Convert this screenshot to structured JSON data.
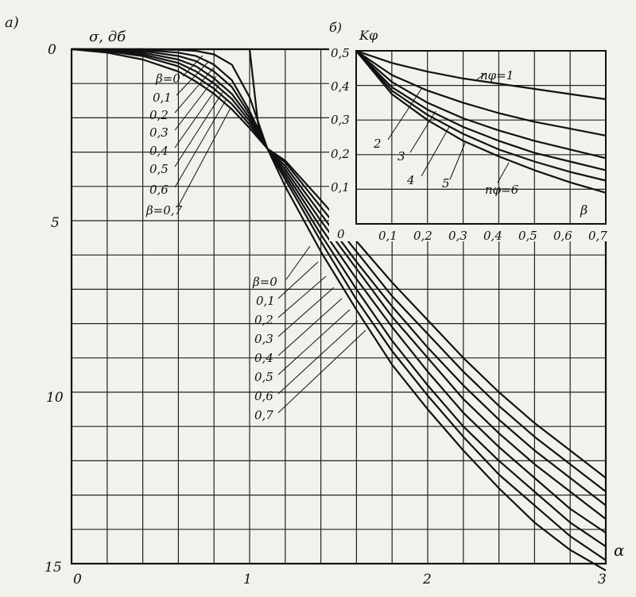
{
  "chart_data": [
    {
      "panel_label": "а)",
      "type": "line",
      "ylabel": "σ, дб",
      "xlabel": "α",
      "x_ticks": [
        "0",
        "1",
        "2",
        "3"
      ],
      "y_ticks": [
        "0",
        "5",
        "10",
        "15"
      ],
      "xlim": [
        0,
        3
      ],
      "ylim": [
        0,
        15
      ],
      "y_inverted": true,
      "grid": true,
      "series_labels_left": [
        "β=0",
        "0,1",
        "0,2",
        "0,3",
        "0,4",
        "0,5",
        "0,6",
        "β=0,7"
      ],
      "series_labels_right": [
        "β=0",
        "0,1",
        "0,2",
        "0,3",
        "0,4",
        "0,5",
        "0,6",
        "0,7"
      ],
      "series": [
        {
          "beta": 0.0,
          "x": [
            0,
            0.2,
            0.4,
            0.6,
            0.8,
            0.9,
            0.95,
            1.0,
            1.05,
            1.1,
            1.2,
            1.4,
            1.6,
            1.8,
            2.0,
            2.2,
            2.4,
            2.6,
            2.8,
            3.0
          ],
          "y": [
            0,
            0,
            0,
            0,
            0,
            0,
            0,
            0,
            2.3,
            2.9,
            4.0,
            5.9,
            7.6,
            9.2,
            10.5,
            11.7,
            12.8,
            13.8,
            14.6,
            15.2
          ]
        },
        {
          "beta": 0.1,
          "x": [
            0,
            0.2,
            0.4,
            0.6,
            0.7,
            0.8,
            0.9,
            1.0,
            1.1,
            1.2,
            1.4,
            1.6,
            1.8,
            2.0,
            2.2,
            2.4,
            2.6,
            2.8,
            3.0
          ],
          "y": [
            0,
            0,
            0,
            0.02,
            0.05,
            0.15,
            0.45,
            1.4,
            2.9,
            3.8,
            5.6,
            7.3,
            8.8,
            10.1,
            11.3,
            12.4,
            13.3,
            14.2,
            14.9
          ]
        },
        {
          "beta": 0.2,
          "x": [
            0,
            0.2,
            0.4,
            0.6,
            0.7,
            0.8,
            0.9,
            1.0,
            1.1,
            1.2,
            1.4,
            1.6,
            1.8,
            2.0,
            2.2,
            2.4,
            2.6,
            2.8,
            3.0
          ],
          "y": [
            0,
            0,
            0.02,
            0.1,
            0.2,
            0.45,
            0.9,
            1.8,
            2.9,
            3.7,
            5.4,
            7.0,
            8.5,
            9.8,
            11.0,
            12.0,
            12.9,
            13.8,
            14.5
          ]
        },
        {
          "beta": 0.3,
          "x": [
            0,
            0.2,
            0.4,
            0.6,
            0.7,
            0.8,
            0.9,
            1.0,
            1.1,
            1.2,
            1.4,
            1.6,
            1.8,
            2.0,
            2.2,
            2.4,
            2.6,
            2.8,
            3.0
          ],
          "y": [
            0,
            0.01,
            0.05,
            0.2,
            0.35,
            0.65,
            1.1,
            1.9,
            2.9,
            3.6,
            5.2,
            6.7,
            8.1,
            9.4,
            10.6,
            11.6,
            12.5,
            13.4,
            14.1
          ]
        },
        {
          "beta": 0.4,
          "x": [
            0,
            0.2,
            0.4,
            0.6,
            0.7,
            0.8,
            0.9,
            1.0,
            1.1,
            1.2,
            1.4,
            1.6,
            1.8,
            2.0,
            2.2,
            2.4,
            2.6,
            2.8,
            3.0
          ],
          "y": [
            0,
            0.02,
            0.1,
            0.3,
            0.5,
            0.85,
            1.3,
            2.0,
            2.9,
            3.5,
            5.0,
            6.4,
            7.8,
            9.0,
            10.2,
            11.2,
            12.1,
            12.9,
            13.7
          ]
        },
        {
          "beta": 0.5,
          "x": [
            0,
            0.2,
            0.4,
            0.6,
            0.7,
            0.8,
            0.9,
            1.0,
            1.1,
            1.2,
            1.4,
            1.6,
            1.8,
            2.0,
            2.2,
            2.4,
            2.6,
            2.8,
            3.0
          ],
          "y": [
            0,
            0.04,
            0.15,
            0.4,
            0.65,
            1.0,
            1.45,
            2.1,
            2.9,
            3.4,
            4.8,
            6.2,
            7.5,
            8.7,
            9.8,
            10.8,
            11.7,
            12.5,
            13.3
          ]
        },
        {
          "beta": 0.6,
          "x": [
            0,
            0.2,
            0.4,
            0.6,
            0.7,
            0.8,
            0.9,
            1.0,
            1.1,
            1.2,
            1.4,
            1.6,
            1.8,
            2.0,
            2.2,
            2.4,
            2.6,
            2.8,
            3.0
          ],
          "y": [
            0,
            0.06,
            0.2,
            0.5,
            0.8,
            1.15,
            1.6,
            2.2,
            2.9,
            3.3,
            4.6,
            5.9,
            7.2,
            8.3,
            9.4,
            10.4,
            11.3,
            12.1,
            12.9
          ]
        },
        {
          "beta": 0.7,
          "x": [
            0,
            0.2,
            0.4,
            0.6,
            0.7,
            0.8,
            0.9,
            1.0,
            1.1,
            1.2,
            1.4,
            1.6,
            1.8,
            2.0,
            2.2,
            2.4,
            2.6,
            2.8,
            3.0
          ],
          "y": [
            0,
            0.1,
            0.3,
            0.65,
            0.95,
            1.3,
            1.75,
            2.3,
            2.9,
            3.25,
            4.4,
            5.6,
            6.8,
            7.9,
            9.0,
            10.0,
            10.9,
            11.7,
            12.5
          ]
        }
      ]
    },
    {
      "panel_label": "б)",
      "type": "line",
      "ylabel": "Kφ",
      "xlabel": "β",
      "x_ticks": [
        "0",
        "0,1",
        "0,2",
        "0,3",
        "0,4",
        "0,5",
        "0,6",
        "0,7"
      ],
      "y_ticks": [
        "0,1",
        "0,2",
        "0,3",
        "0,4",
        "0,5"
      ],
      "xlim": [
        0,
        0.7
      ],
      "ylim": [
        0,
        0.5
      ],
      "grid": true,
      "series_labels": [
        "nφ=1",
        "2",
        "3",
        "4",
        "5",
        "nφ=6"
      ],
      "series": [
        {
          "n": 1,
          "x": [
            0,
            0.1,
            0.2,
            0.3,
            0.4,
            0.5,
            0.6,
            0.7
          ],
          "y": [
            0.5,
            0.465,
            0.44,
            0.42,
            0.405,
            0.39,
            0.375,
            0.36
          ]
        },
        {
          "n": 2,
          "x": [
            0,
            0.1,
            0.2,
            0.3,
            0.4,
            0.5,
            0.6,
            0.7
          ],
          "y": [
            0.5,
            0.43,
            0.385,
            0.35,
            0.32,
            0.295,
            0.275,
            0.255
          ]
        },
        {
          "n": 3,
          "x": [
            0,
            0.1,
            0.2,
            0.3,
            0.4,
            0.5,
            0.6,
            0.7
          ],
          "y": [
            0.5,
            0.41,
            0.35,
            0.305,
            0.27,
            0.24,
            0.215,
            0.19
          ]
        },
        {
          "n": 4,
          "x": [
            0,
            0.1,
            0.2,
            0.3,
            0.4,
            0.5,
            0.6,
            0.7
          ],
          "y": [
            0.5,
            0.395,
            0.33,
            0.28,
            0.24,
            0.205,
            0.18,
            0.155
          ]
        },
        {
          "n": 5,
          "x": [
            0,
            0.1,
            0.2,
            0.3,
            0.4,
            0.5,
            0.6,
            0.7
          ],
          "y": [
            0.5,
            0.385,
            0.315,
            0.26,
            0.215,
            0.18,
            0.15,
            0.125
          ]
        },
        {
          "n": 6,
          "x": [
            0,
            0.1,
            0.2,
            0.3,
            0.4,
            0.5,
            0.6,
            0.7
          ],
          "y": [
            0.5,
            0.375,
            0.3,
            0.24,
            0.195,
            0.155,
            0.12,
            0.09
          ]
        }
      ]
    }
  ]
}
